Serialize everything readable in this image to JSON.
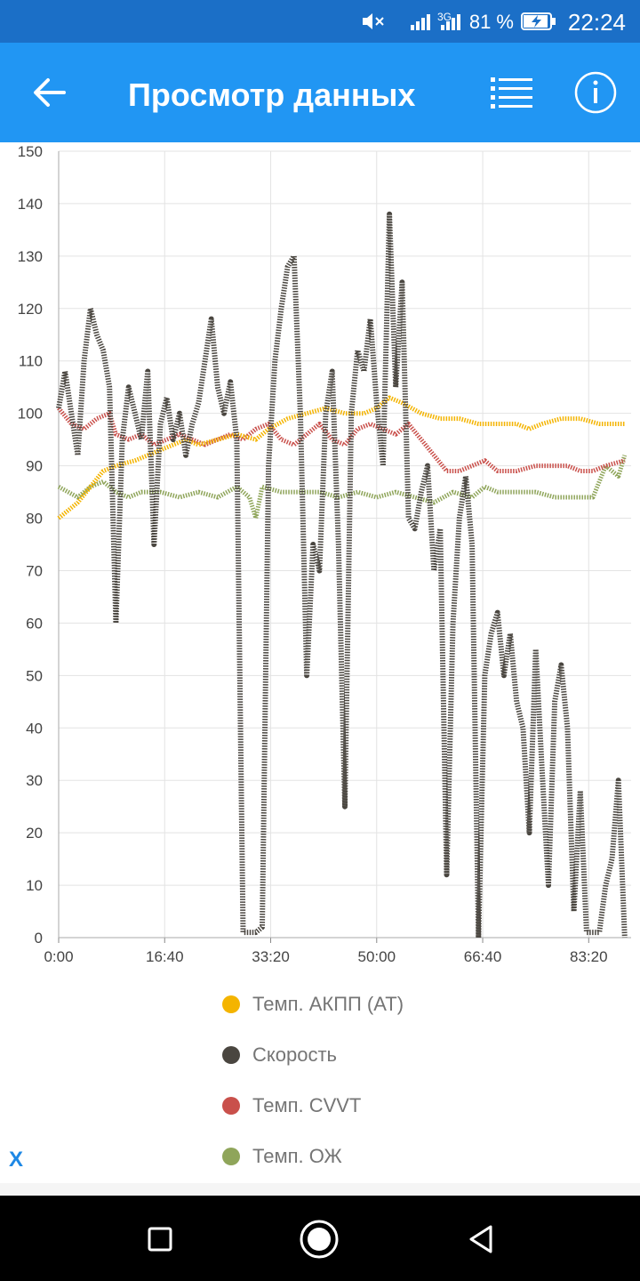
{
  "status_bar": {
    "network": "3G",
    "battery": "81 %",
    "time": "22:24"
  },
  "app_bar": {
    "title": "Просмотр данных",
    "back_icon": "arrow-left-icon",
    "list_icon": "list-icon",
    "info_icon": "info-icon"
  },
  "chart_data": {
    "type": "line",
    "ylim": [
      0,
      150
    ],
    "xlim": [
      0,
      90
    ],
    "y_ticks": [
      "0",
      "10",
      "20",
      "30",
      "40",
      "50",
      "60",
      "70",
      "80",
      "90",
      "100",
      "110",
      "120",
      "130",
      "140",
      "150"
    ],
    "x_ticks": [
      "0:00",
      "16:40",
      "33:20",
      "50:00",
      "66:40",
      "83:20"
    ],
    "grid": true,
    "x_unit": "minutes",
    "series": [
      {
        "name": "Темп. АКПП (AT)",
        "color": "#f4b400",
        "points": [
          [
            0,
            80
          ],
          [
            3,
            83
          ],
          [
            5,
            86
          ],
          [
            7,
            89
          ],
          [
            9,
            90
          ],
          [
            12,
            91
          ],
          [
            14,
            92
          ],
          [
            16,
            93
          ],
          [
            18,
            94
          ],
          [
            20,
            95
          ],
          [
            22,
            94
          ],
          [
            25,
            95
          ],
          [
            28,
            96
          ],
          [
            31,
            95
          ],
          [
            33,
            97
          ],
          [
            36,
            99
          ],
          [
            39,
            100
          ],
          [
            42,
            101
          ],
          [
            45,
            100
          ],
          [
            48,
            100
          ],
          [
            50,
            101
          ],
          [
            52,
            103
          ],
          [
            54,
            102
          ],
          [
            57,
            100
          ],
          [
            60,
            99
          ],
          [
            63,
            99
          ],
          [
            66,
            98
          ],
          [
            69,
            98
          ],
          [
            72,
            98
          ],
          [
            74,
            97
          ],
          [
            76,
            98
          ],
          [
            79,
            99
          ],
          [
            82,
            99
          ],
          [
            85,
            98
          ],
          [
            89,
            98
          ]
        ]
      },
      {
        "name": "Скорость",
        "color": "#4a4640",
        "points": [
          [
            0,
            101
          ],
          [
            1,
            108
          ],
          [
            2,
            100
          ],
          [
            3,
            92
          ],
          [
            4,
            110
          ],
          [
            5,
            120
          ],
          [
            6,
            115
          ],
          [
            7,
            112
          ],
          [
            8,
            105
          ],
          [
            9,
            60
          ],
          [
            10,
            95
          ],
          [
            11,
            105
          ],
          [
            12,
            100
          ],
          [
            13,
            95
          ],
          [
            14,
            108
          ],
          [
            15,
            75
          ],
          [
            16,
            98
          ],
          [
            17,
            103
          ],
          [
            18,
            95
          ],
          [
            19,
            100
          ],
          [
            20,
            92
          ],
          [
            21,
            98
          ],
          [
            22,
            102
          ],
          [
            23,
            110
          ],
          [
            24,
            118
          ],
          [
            25,
            105
          ],
          [
            26,
            100
          ],
          [
            27,
            106
          ],
          [
            28,
            95
          ],
          [
            29,
            1
          ],
          [
            30,
            1
          ],
          [
            31,
            1
          ],
          [
            32,
            2
          ],
          [
            33,
            90
          ],
          [
            34,
            110
          ],
          [
            35,
            120
          ],
          [
            36,
            128
          ],
          [
            37,
            130
          ],
          [
            38,
            100
          ],
          [
            39,
            50
          ],
          [
            40,
            75
          ],
          [
            41,
            70
          ],
          [
            42,
            100
          ],
          [
            43,
            108
          ],
          [
            44,
            75
          ],
          [
            45,
            25
          ],
          [
            46,
            100
          ],
          [
            47,
            112
          ],
          [
            48,
            108
          ],
          [
            49,
            118
          ],
          [
            50,
            102
          ],
          [
            51,
            90
          ],
          [
            52,
            138
          ],
          [
            53,
            105
          ],
          [
            54,
            125
          ],
          [
            55,
            80
          ],
          [
            56,
            78
          ],
          [
            57,
            85
          ],
          [
            58,
            90
          ],
          [
            59,
            70
          ],
          [
            60,
            78
          ],
          [
            61,
            12
          ],
          [
            62,
            60
          ],
          [
            63,
            80
          ],
          [
            64,
            88
          ],
          [
            65,
            75
          ],
          [
            66,
            0
          ],
          [
            67,
            50
          ],
          [
            68,
            58
          ],
          [
            69,
            62
          ],
          [
            70,
            50
          ],
          [
            71,
            58
          ],
          [
            72,
            45
          ],
          [
            73,
            40
          ],
          [
            74,
            20
          ],
          [
            75,
            55
          ],
          [
            76,
            32
          ],
          [
            77,
            10
          ],
          [
            78,
            45
          ],
          [
            79,
            52
          ],
          [
            80,
            40
          ],
          [
            81,
            5
          ],
          [
            82,
            28
          ],
          [
            83,
            1
          ],
          [
            84,
            1
          ],
          [
            85,
            1
          ],
          [
            86,
            10
          ],
          [
            87,
            15
          ],
          [
            88,
            30
          ],
          [
            89,
            0
          ]
        ]
      },
      {
        "name": "Темп. CVVT",
        "color": "#c9504b",
        "points": [
          [
            0,
            101
          ],
          [
            2,
            98
          ],
          [
            4,
            97
          ],
          [
            6,
            99
          ],
          [
            8,
            100
          ],
          [
            9,
            96
          ],
          [
            11,
            95
          ],
          [
            13,
            96
          ],
          [
            15,
            94
          ],
          [
            17,
            95
          ],
          [
            19,
            96
          ],
          [
            21,
            95
          ],
          [
            23,
            94
          ],
          [
            25,
            95
          ],
          [
            27,
            96
          ],
          [
            29,
            95
          ],
          [
            31,
            97
          ],
          [
            33,
            98
          ],
          [
            35,
            95
          ],
          [
            37,
            94
          ],
          [
            39,
            96
          ],
          [
            41,
            98
          ],
          [
            43,
            95
          ],
          [
            45,
            94
          ],
          [
            47,
            97
          ],
          [
            49,
            98
          ],
          [
            51,
            97
          ],
          [
            53,
            96
          ],
          [
            55,
            98
          ],
          [
            57,
            95
          ],
          [
            59,
            92
          ],
          [
            61,
            89
          ],
          [
            63,
            89
          ],
          [
            65,
            90
          ],
          [
            67,
            91
          ],
          [
            69,
            89
          ],
          [
            72,
            89
          ],
          [
            75,
            90
          ],
          [
            78,
            90
          ],
          [
            80,
            90
          ],
          [
            82,
            89
          ],
          [
            84,
            89
          ],
          [
            86,
            90
          ],
          [
            89,
            91
          ]
        ]
      },
      {
        "name": "Темп. ОЖ",
        "color": "#8fa55a",
        "points": [
          [
            0,
            86
          ],
          [
            3,
            84
          ],
          [
            5,
            86
          ],
          [
            7,
            87
          ],
          [
            9,
            85
          ],
          [
            11,
            84
          ],
          [
            13,
            85
          ],
          [
            16,
            85
          ],
          [
            19,
            84
          ],
          [
            22,
            85
          ],
          [
            25,
            84
          ],
          [
            28,
            86
          ],
          [
            30,
            84
          ],
          [
            31,
            80
          ],
          [
            32,
            86
          ],
          [
            35,
            85
          ],
          [
            38,
            85
          ],
          [
            41,
            85
          ],
          [
            44,
            84
          ],
          [
            47,
            85
          ],
          [
            50,
            84
          ],
          [
            53,
            85
          ],
          [
            56,
            84
          ],
          [
            59,
            83
          ],
          [
            62,
            85
          ],
          [
            65,
            84
          ],
          [
            67,
            86
          ],
          [
            69,
            85
          ],
          [
            72,
            85
          ],
          [
            75,
            85
          ],
          [
            78,
            84
          ],
          [
            81,
            84
          ],
          [
            84,
            84
          ],
          [
            86,
            90
          ],
          [
            88,
            88
          ],
          [
            89,
            92
          ]
        ]
      }
    ]
  },
  "legend": [
    {
      "label": "Темп. АКПП (AT)",
      "color": "#f4b400"
    },
    {
      "label": "Скорость",
      "color": "#4a4640"
    },
    {
      "label": "Темп. CVVT",
      "color": "#c9504b"
    },
    {
      "label": "Темп. ОЖ",
      "color": "#8fa55a"
    }
  ],
  "close_label": "X",
  "nav_bar": {
    "recents_icon": "square-icon",
    "home_icon": "circle-icon",
    "back_icon": "triangle-back-icon"
  }
}
